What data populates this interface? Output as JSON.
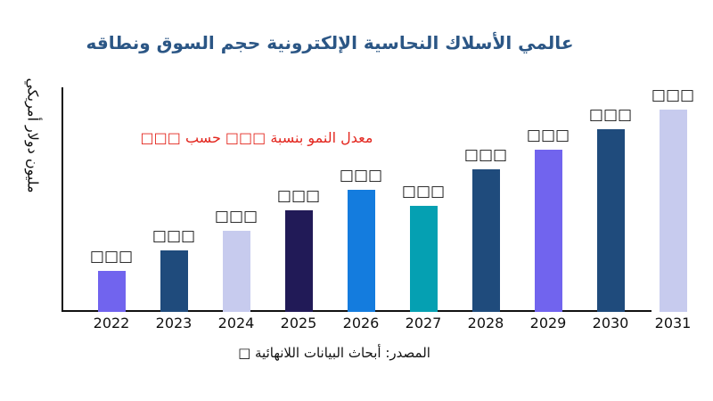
{
  "chart_data": {
    "type": "bar",
    "title": "عالمي الأسلاك النحاسية الإلكترونية حجم السوق ونطاقه",
    "title_color": "#2b5685",
    "annotation": "معدل النمو بنسبة □□□ حسب □□□",
    "annotation_color": "#e3261e",
    "ylabel": "مليون دولار أمريكي",
    "source": "المصدر: أبحاث البيانات اللانهائية □",
    "categories": [
      "2022",
      "2023",
      "2024",
      "2025",
      "2026",
      "2027",
      "2028",
      "2029",
      "2030",
      "2031"
    ],
    "values": [
      46,
      69,
      91,
      114,
      137,
      119,
      160,
      182,
      205,
      227
    ],
    "value_labels": [
      "□□□",
      "□□□",
      "□□□",
      "□□□",
      "□□□",
      "□□□",
      "□□□",
      "□□□",
      "□□□",
      "□□□"
    ],
    "bar_colors": [
      "#7164ee",
      "#1f4b7c",
      "#c7cbee",
      "#211a57",
      "#147cde",
      "#05a0b2",
      "#1f4b7c",
      "#7164ee",
      "#1f4b7c",
      "#c7cbee"
    ],
    "axis_color": "#111111",
    "legend": "none",
    "grid": "off"
  }
}
